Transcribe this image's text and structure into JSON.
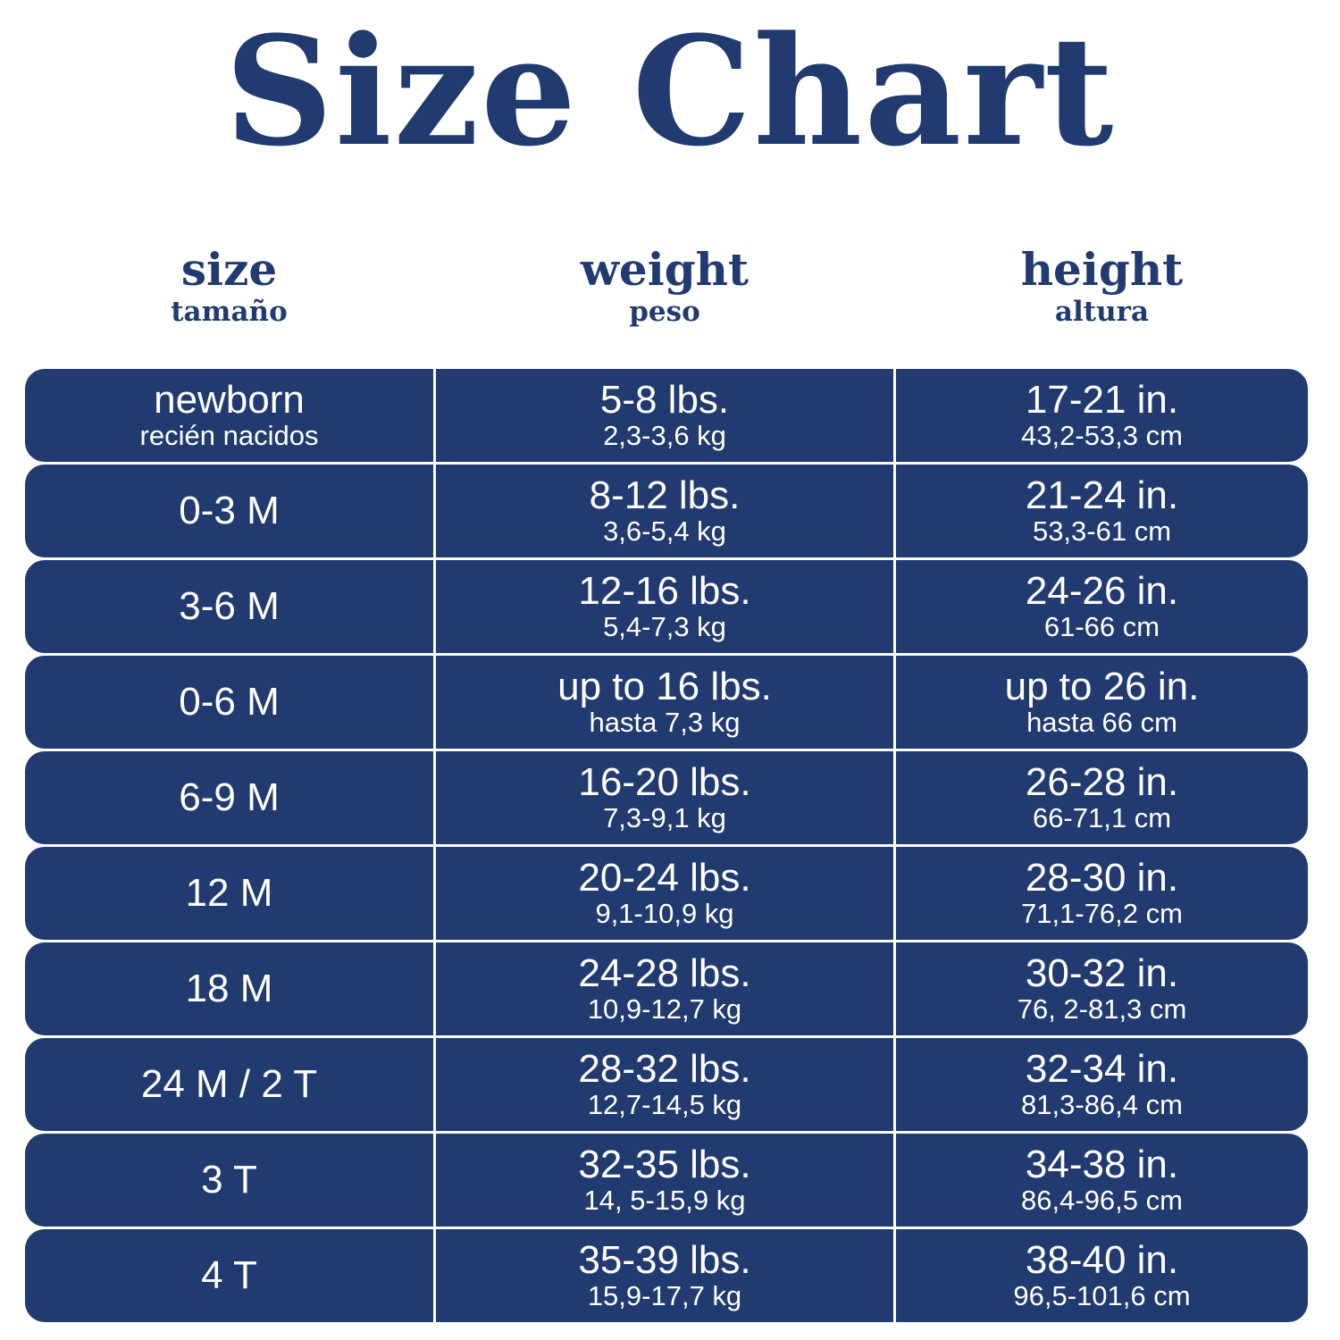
{
  "title": "Size Chart",
  "colors": {
    "navy": "#213a70",
    "background": "#ffffff",
    "text_on_navy": "#ffffff"
  },
  "headers": [
    {
      "label": "size",
      "sublabel": "tamaño"
    },
    {
      "label": "weight",
      "sublabel": "peso"
    },
    {
      "label": "height",
      "sublabel": "altura"
    }
  ],
  "rows": [
    {
      "size": "newborn",
      "size_sub": "recién nacidos",
      "weight": "5-8 lbs.",
      "weight_sub": "2,3-3,6 kg",
      "height": "17-21 in.",
      "height_sub": "43,2-53,3 cm"
    },
    {
      "size": "0-3 M",
      "weight": "8-12 lbs.",
      "weight_sub": "3,6-5,4 kg",
      "height": "21-24 in.",
      "height_sub": "53,3-61 cm"
    },
    {
      "size": "3-6 M",
      "weight": "12-16 lbs.",
      "weight_sub": "5,4-7,3 kg",
      "height": "24-26 in.",
      "height_sub": "61-66 cm"
    },
    {
      "size": "0-6 M",
      "weight": "up to 16 lbs.",
      "weight_sub": "hasta 7,3 kg",
      "height": "up to 26 in.",
      "height_sub": "hasta 66 cm"
    },
    {
      "size": "6-9 M",
      "weight": "16-20 lbs.",
      "weight_sub": "7,3-9,1 kg",
      "height": "26-28 in.",
      "height_sub": "66-71,1 cm"
    },
    {
      "size": "12 M",
      "weight": "20-24 lbs.",
      "weight_sub": "9,1-10,9 kg",
      "height": "28-30 in.",
      "height_sub": "71,1-76,2 cm"
    },
    {
      "size": "18 M",
      "weight": "24-28 lbs.",
      "weight_sub": "10,9-12,7 kg",
      "height": "30-32 in.",
      "height_sub": "76, 2-81,3 cm"
    },
    {
      "size": "24 M / 2 T",
      "weight": "28-32 lbs.",
      "weight_sub": "12,7-14,5 kg",
      "height": "32-34 in.",
      "height_sub": "81,3-86,4 cm"
    },
    {
      "size": "3 T",
      "weight": "32-35 lbs.",
      "weight_sub": "14, 5-15,9 kg",
      "height": "34-38 in.",
      "height_sub": "86,4-96,5 cm"
    },
    {
      "size": "4 T",
      "weight": "35-39 lbs.",
      "weight_sub": "15,9-17,7 kg",
      "height": "38-40 in.",
      "height_sub": "96,5-101,6 cm"
    }
  ]
}
